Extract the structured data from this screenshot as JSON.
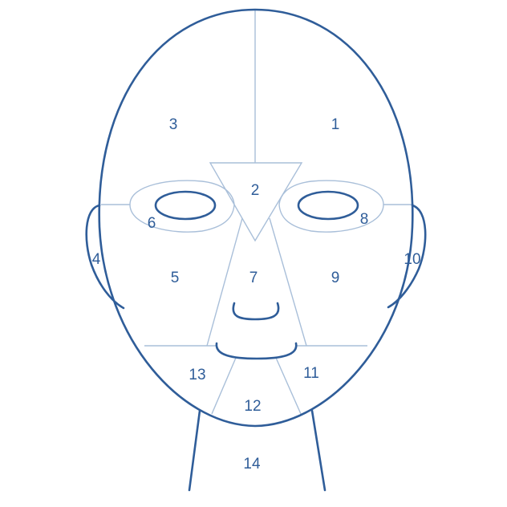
{
  "colors": {
    "outline": "#2f5d99",
    "divider": "#a9bfd9",
    "label": "#2f5d99",
    "background": "#ffffff"
  },
  "regions": [
    {
      "id": "1",
      "label": "1"
    },
    {
      "id": "2",
      "label": "2"
    },
    {
      "id": "3",
      "label": "3"
    },
    {
      "id": "4",
      "label": "4"
    },
    {
      "id": "5",
      "label": "5"
    },
    {
      "id": "6",
      "label": "6"
    },
    {
      "id": "7",
      "label": "7"
    },
    {
      "id": "8",
      "label": "8"
    },
    {
      "id": "9",
      "label": "9"
    },
    {
      "id": "10",
      "label": "10"
    },
    {
      "id": "11",
      "label": "11"
    },
    {
      "id": "12",
      "label": "12"
    },
    {
      "id": "13",
      "label": "13"
    },
    {
      "id": "14",
      "label": "14"
    }
  ]
}
